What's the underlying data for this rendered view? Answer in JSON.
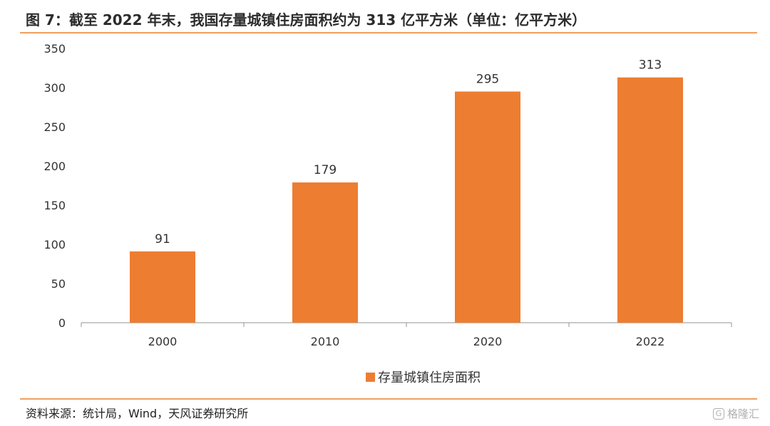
{
  "header": {
    "title": "图 7：截至 2022 年末，我国存量城镇住房面积约为 313 亿平方米（单位：亿平方米）"
  },
  "footer": {
    "source": "资料来源：统计局，Wind，天风证券研究所",
    "watermark": "格隆汇",
    "watermark_logo": "G"
  },
  "chart_data": {
    "type": "bar",
    "title": "",
    "xlabel": "",
    "ylabel": "",
    "categories": [
      "2000",
      "2010",
      "2020",
      "2022"
    ],
    "series": [
      {
        "name": "存量城镇住房面积",
        "values": [
          91,
          179,
          295,
          313
        ],
        "color": "#ed7d31"
      }
    ],
    "data_labels": [
      "91",
      "179",
      "295",
      "313"
    ],
    "ylim": [
      0,
      350
    ],
    "yticks": [
      "0",
      "50",
      "100",
      "150",
      "200",
      "250",
      "300",
      "350"
    ],
    "grid": false,
    "legend_position": "bottom"
  }
}
